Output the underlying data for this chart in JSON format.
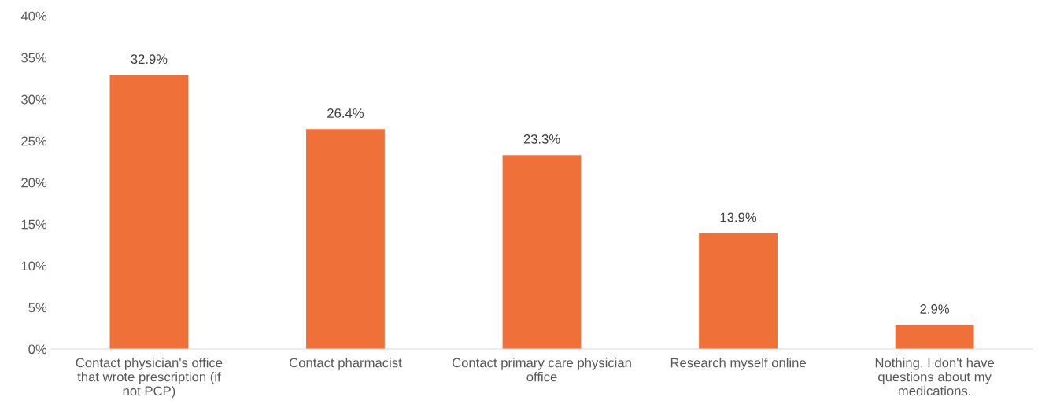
{
  "chart_data": {
    "type": "bar",
    "categories": [
      "Contact physician's office that wrote prescription (if not PCP)",
      "Contact pharmacist",
      "Contact primary care physician office",
      "Research myself online",
      "Nothing. I don't have questions about my medications."
    ],
    "values": [
      32.9,
      26.4,
      23.3,
      13.9,
      2.9
    ],
    "value_labels": [
      "32.9%",
      "26.4%",
      "23.3%",
      "13.9%",
      "2.9%"
    ],
    "color": "#ef7139",
    "ylim": [
      0,
      40
    ],
    "yticks": [
      {
        "value": 0,
        "label": "0%"
      },
      {
        "value": 5,
        "label": "5%"
      },
      {
        "value": 10,
        "label": "10%"
      },
      {
        "value": 15,
        "label": "15%"
      },
      {
        "value": 20,
        "label": "20%"
      },
      {
        "value": 25,
        "label": "25%"
      },
      {
        "value": 30,
        "label": "30%"
      },
      {
        "value": 35,
        "label": "35%"
      },
      {
        "value": 40,
        "label": "40%"
      }
    ],
    "grid": false,
    "legend": false
  }
}
